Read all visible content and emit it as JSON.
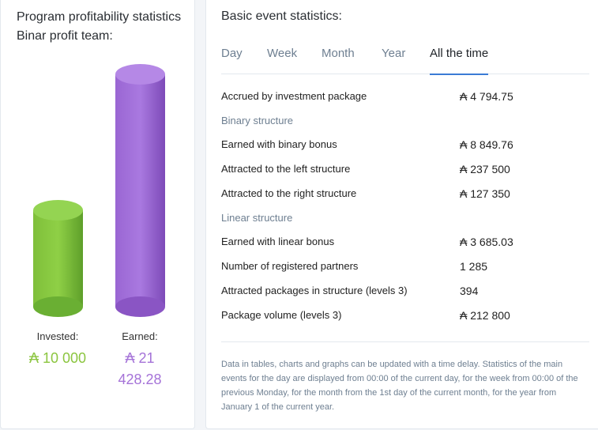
{
  "left": {
    "title": "Program profitability statistics Binar profit team:",
    "invested_label": "Invested:",
    "invested_value": "₳ 10 000",
    "earned_label": "Earned:",
    "earned_value_line1": "₳ 21",
    "earned_value_line2": "428.28",
    "colors": {
      "invested": "#8bc53f",
      "earned": "#a573d8"
    }
  },
  "right": {
    "title": "Basic event statistics:",
    "tabs": [
      {
        "label": "Day"
      },
      {
        "label": "Week"
      },
      {
        "label": "Month"
      },
      {
        "label": "Year"
      },
      {
        "label": "All the time",
        "active": true
      }
    ],
    "rows": {
      "accrued": {
        "label": "Accrued by investment package",
        "value": "₳ 4 794.75"
      },
      "binary_heading": "Binary structure",
      "binary_bonus": {
        "label": "Earned with binary bonus",
        "value": "₳ 8 849.76"
      },
      "left_structure": {
        "label": "Attracted to the left structure",
        "value": "₳ 237 500"
      },
      "right_structure": {
        "label": "Attracted to the right structure",
        "value": "₳ 127 350"
      },
      "linear_heading": "Linear structure",
      "linear_bonus": {
        "label": "Earned with linear bonus",
        "value": "₳ 3 685.03"
      },
      "partners": {
        "label": "Number of registered partners",
        "value": "1 285"
      },
      "packages": {
        "label": "Attracted packages in structure (levels 3)",
        "value": "394"
      },
      "volume": {
        "label": "Package volume (levels 3)",
        "value": "₳ 212 800"
      }
    },
    "note": "Data in tables, charts and graphs can be updated with a time delay. Statistics of the main events for the day are displayed from 00:00 of the current day, for the week from 00:00 of the previous Monday, for the month from the 1st day of the current month, for the year from January 1 of the current year."
  }
}
